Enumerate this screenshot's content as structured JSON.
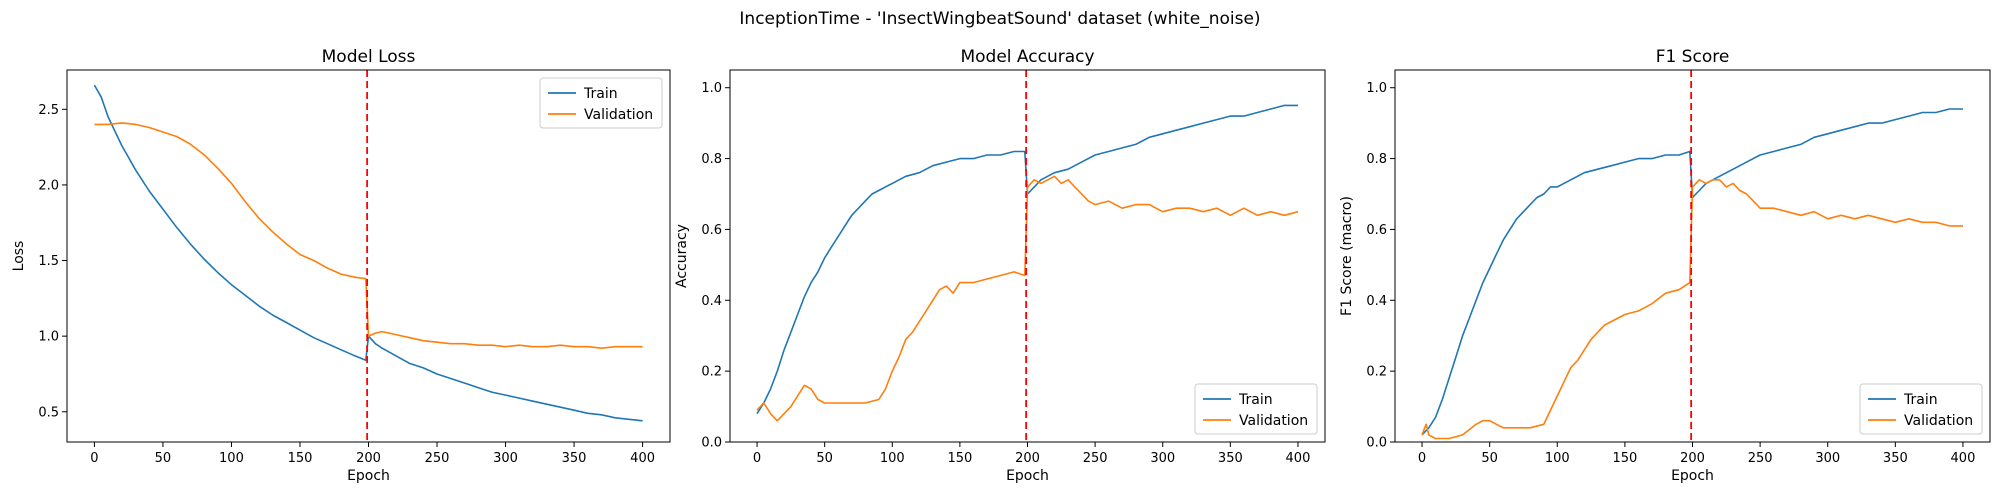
{
  "figure": {
    "suptitle": "InceptionTime - 'InsectWingbeatSound' dataset (white_noise)"
  },
  "colors": {
    "train": "#1f77b4",
    "validation": "#ff7f0e",
    "vline": "#ff0000"
  },
  "chart_data": [
    {
      "type": "line",
      "title": "Model Loss",
      "xlabel": "Epoch",
      "ylabel": "Loss",
      "xlim": [
        -20,
        420
      ],
      "ylim": [
        0.3,
        2.76
      ],
      "xticks": [
        0,
        50,
        100,
        150,
        200,
        250,
        300,
        350,
        400
      ],
      "yticks": [
        0.5,
        1.0,
        1.5,
        2.0,
        2.5
      ],
      "ytick_labels": [
        "0.5",
        "1.0",
        "1.5",
        "2.0",
        "2.5"
      ],
      "vline": 199,
      "legend": "top-right",
      "grid": false,
      "series": [
        {
          "name": "Train",
          "x": [
            0,
            5,
            10,
            20,
            30,
            40,
            50,
            60,
            70,
            80,
            90,
            100,
            110,
            120,
            130,
            140,
            150,
            160,
            170,
            180,
            190,
            198,
            200,
            205,
            210,
            220,
            230,
            240,
            250,
            260,
            270,
            280,
            290,
            300,
            310,
            320,
            330,
            340,
            350,
            360,
            370,
            380,
            390,
            400
          ],
          "y": [
            2.66,
            2.58,
            2.45,
            2.26,
            2.1,
            1.96,
            1.84,
            1.72,
            1.61,
            1.51,
            1.42,
            1.34,
            1.27,
            1.2,
            1.14,
            1.09,
            1.04,
            0.99,
            0.95,
            0.91,
            0.87,
            0.84,
            1.0,
            0.95,
            0.92,
            0.87,
            0.82,
            0.79,
            0.75,
            0.72,
            0.69,
            0.66,
            0.63,
            0.61,
            0.59,
            0.57,
            0.55,
            0.53,
            0.51,
            0.49,
            0.48,
            0.46,
            0.45,
            0.44
          ]
        },
        {
          "name": "Validation",
          "x": [
            0,
            10,
            20,
            30,
            40,
            50,
            60,
            70,
            80,
            90,
            100,
            110,
            120,
            130,
            140,
            150,
            160,
            170,
            180,
            190,
            198,
            200,
            205,
            210,
            220,
            230,
            240,
            250,
            260,
            270,
            280,
            290,
            300,
            310,
            320,
            330,
            340,
            350,
            360,
            370,
            380,
            390,
            400
          ],
          "y": [
            2.4,
            2.4,
            2.41,
            2.4,
            2.38,
            2.35,
            2.32,
            2.27,
            2.2,
            2.11,
            2.01,
            1.89,
            1.78,
            1.69,
            1.61,
            1.54,
            1.5,
            1.45,
            1.41,
            1.39,
            1.38,
            1.0,
            1.02,
            1.03,
            1.01,
            0.99,
            0.97,
            0.96,
            0.95,
            0.95,
            0.94,
            0.94,
            0.93,
            0.94,
            0.93,
            0.93,
            0.94,
            0.93,
            0.93,
            0.92,
            0.93,
            0.93,
            0.93
          ]
        }
      ]
    },
    {
      "type": "line",
      "title": "Model Accuracy",
      "xlabel": "Epoch",
      "ylabel": "Accuracy",
      "xlim": [
        -20,
        420
      ],
      "ylim": [
        0.0,
        1.05
      ],
      "xticks": [
        0,
        50,
        100,
        150,
        200,
        250,
        300,
        350,
        400
      ],
      "yticks": [
        0.0,
        0.2,
        0.4,
        0.6,
        0.8,
        1.0
      ],
      "ytick_labels": [
        "0.0",
        "0.2",
        "0.4",
        "0.6",
        "0.8",
        "1.0"
      ],
      "vline": 199,
      "legend": "bottom-right",
      "grid": false,
      "series": [
        {
          "name": "Train",
          "x": [
            0,
            5,
            10,
            15,
            20,
            25,
            30,
            35,
            40,
            45,
            50,
            55,
            60,
            65,
            70,
            75,
            80,
            85,
            90,
            95,
            100,
            110,
            120,
            130,
            140,
            150,
            160,
            170,
            180,
            190,
            198,
            200,
            205,
            210,
            220,
            230,
            240,
            250,
            260,
            270,
            280,
            290,
            300,
            310,
            320,
            330,
            340,
            350,
            360,
            370,
            380,
            390,
            400
          ],
          "y": [
            0.08,
            0.11,
            0.15,
            0.2,
            0.26,
            0.31,
            0.36,
            0.41,
            0.45,
            0.48,
            0.52,
            0.55,
            0.58,
            0.61,
            0.64,
            0.66,
            0.68,
            0.7,
            0.71,
            0.72,
            0.73,
            0.75,
            0.76,
            0.78,
            0.79,
            0.8,
            0.8,
            0.81,
            0.81,
            0.82,
            0.82,
            0.7,
            0.72,
            0.74,
            0.76,
            0.77,
            0.79,
            0.81,
            0.82,
            0.83,
            0.84,
            0.86,
            0.87,
            0.88,
            0.89,
            0.9,
            0.91,
            0.92,
            0.92,
            0.93,
            0.94,
            0.95,
            0.95
          ]
        },
        {
          "name": "Validation",
          "x": [
            0,
            5,
            10,
            15,
            20,
            25,
            30,
            35,
            40,
            45,
            50,
            55,
            60,
            70,
            80,
            90,
            95,
            100,
            105,
            110,
            115,
            120,
            125,
            130,
            135,
            140,
            145,
            150,
            160,
            170,
            180,
            190,
            198,
            200,
            205,
            210,
            215,
            220,
            225,
            230,
            235,
            240,
            245,
            250,
            260,
            270,
            280,
            290,
            300,
            310,
            320,
            330,
            340,
            350,
            360,
            370,
            380,
            390,
            400
          ],
          "y": [
            0.09,
            0.11,
            0.08,
            0.06,
            0.08,
            0.1,
            0.13,
            0.16,
            0.15,
            0.12,
            0.11,
            0.11,
            0.11,
            0.11,
            0.11,
            0.12,
            0.15,
            0.2,
            0.24,
            0.29,
            0.31,
            0.34,
            0.37,
            0.4,
            0.43,
            0.44,
            0.42,
            0.45,
            0.45,
            0.46,
            0.47,
            0.48,
            0.47,
            0.72,
            0.74,
            0.73,
            0.74,
            0.75,
            0.73,
            0.74,
            0.72,
            0.7,
            0.68,
            0.67,
            0.68,
            0.66,
            0.67,
            0.67,
            0.65,
            0.66,
            0.66,
            0.65,
            0.66,
            0.64,
            0.66,
            0.64,
            0.65,
            0.64,
            0.65
          ]
        }
      ]
    },
    {
      "type": "line",
      "title": "F1 Score",
      "xlabel": "Epoch",
      "ylabel": "F1 Score (macro)",
      "xlim": [
        -20,
        420
      ],
      "ylim": [
        0.0,
        1.05
      ],
      "xticks": [
        0,
        50,
        100,
        150,
        200,
        250,
        300,
        350,
        400
      ],
      "yticks": [
        0.0,
        0.2,
        0.4,
        0.6,
        0.8,
        1.0
      ],
      "ytick_labels": [
        "0.0",
        "0.2",
        "0.4",
        "0.6",
        "0.8",
        "1.0"
      ],
      "vline": 199,
      "legend": "bottom-right",
      "grid": false,
      "series": [
        {
          "name": "Train",
          "x": [
            0,
            5,
            10,
            15,
            20,
            25,
            30,
            35,
            40,
            45,
            50,
            55,
            60,
            65,
            70,
            75,
            80,
            85,
            90,
            95,
            100,
            110,
            120,
            130,
            140,
            150,
            160,
            170,
            180,
            190,
            198,
            200,
            205,
            210,
            220,
            230,
            240,
            250,
            260,
            270,
            280,
            290,
            300,
            310,
            320,
            330,
            340,
            350,
            360,
            370,
            380,
            390,
            400
          ],
          "y": [
            0.02,
            0.04,
            0.07,
            0.12,
            0.18,
            0.24,
            0.3,
            0.35,
            0.4,
            0.45,
            0.49,
            0.53,
            0.57,
            0.6,
            0.63,
            0.65,
            0.67,
            0.69,
            0.7,
            0.72,
            0.72,
            0.74,
            0.76,
            0.77,
            0.78,
            0.79,
            0.8,
            0.8,
            0.81,
            0.81,
            0.82,
            0.69,
            0.71,
            0.73,
            0.75,
            0.77,
            0.79,
            0.81,
            0.82,
            0.83,
            0.84,
            0.86,
            0.87,
            0.88,
            0.89,
            0.9,
            0.9,
            0.91,
            0.92,
            0.93,
            0.93,
            0.94,
            0.94
          ]
        },
        {
          "name": "Validation",
          "x": [
            0,
            3,
            5,
            10,
            20,
            30,
            40,
            45,
            50,
            55,
            60,
            70,
            80,
            90,
            95,
            100,
            105,
            110,
            115,
            120,
            125,
            130,
            135,
            140,
            145,
            150,
            160,
            170,
            180,
            190,
            198,
            200,
            205,
            210,
            215,
            220,
            225,
            230,
            235,
            240,
            245,
            250,
            260,
            270,
            280,
            290,
            300,
            310,
            320,
            330,
            340,
            350,
            360,
            370,
            380,
            390,
            400
          ],
          "y": [
            0.02,
            0.05,
            0.02,
            0.01,
            0.01,
            0.02,
            0.05,
            0.06,
            0.06,
            0.05,
            0.04,
            0.04,
            0.04,
            0.05,
            0.09,
            0.13,
            0.17,
            0.21,
            0.23,
            0.26,
            0.29,
            0.31,
            0.33,
            0.34,
            0.35,
            0.36,
            0.37,
            0.39,
            0.42,
            0.43,
            0.45,
            0.72,
            0.74,
            0.73,
            0.74,
            0.74,
            0.72,
            0.73,
            0.71,
            0.7,
            0.68,
            0.66,
            0.66,
            0.65,
            0.64,
            0.65,
            0.63,
            0.64,
            0.63,
            0.64,
            0.63,
            0.62,
            0.63,
            0.62,
            0.62,
            0.61,
            0.61
          ]
        }
      ]
    }
  ]
}
